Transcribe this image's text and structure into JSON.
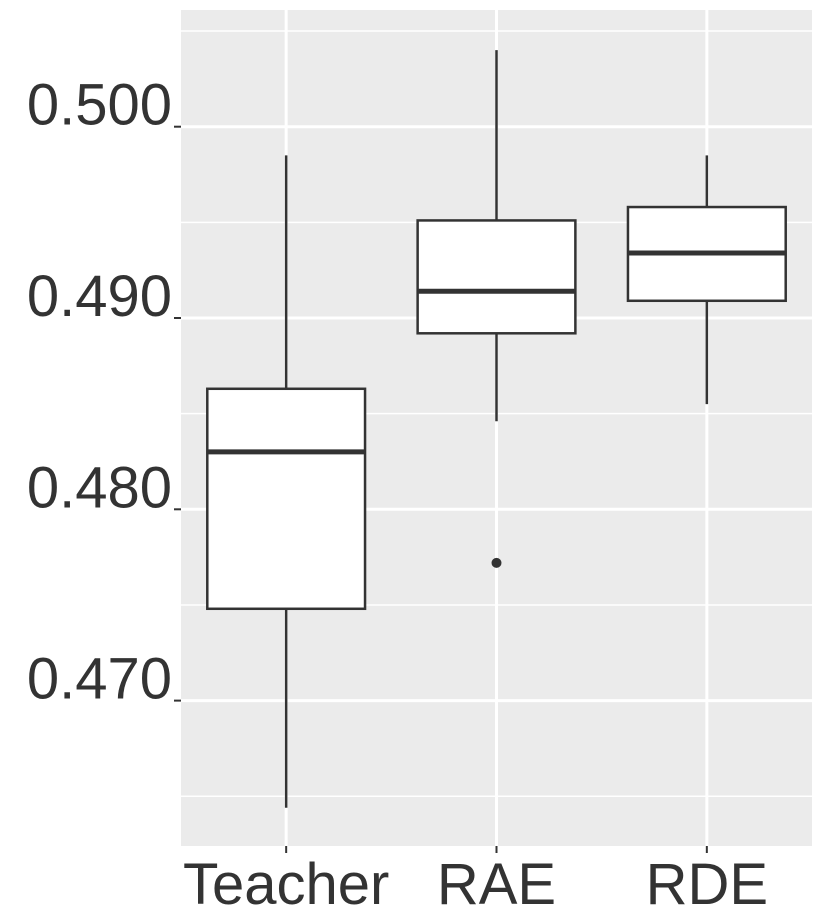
{
  "chart_data": {
    "type": "boxplot",
    "title": "",
    "xlabel": "",
    "ylabel": "",
    "categories": [
      "Teacher",
      "RAE",
      "RDE"
    ],
    "boxes": [
      {
        "category": "Teacher",
        "whisker_low": 0.4644,
        "q1": 0.4748,
        "median": 0.483,
        "q3": 0.4863,
        "whisker_high": 0.4985,
        "outliers": []
      },
      {
        "category": "RAE",
        "whisker_low": 0.4846,
        "q1": 0.4892,
        "median": 0.4914,
        "q3": 0.4951,
        "whisker_high": 0.504,
        "outliers": [
          0.4772
        ]
      },
      {
        "category": "RDE",
        "whisker_low": 0.4855,
        "q1": 0.4909,
        "median": 0.4934,
        "q3": 0.4958,
        "whisker_high": 0.4985,
        "outliers": []
      }
    ],
    "yticks": [
      0.47,
      0.48,
      0.49,
      0.5
    ],
    "ytick_labels": [
      "0.470",
      "0.480",
      "0.490",
      "0.500"
    ],
    "ylim": [
      0.4624,
      0.5061
    ],
    "grid": true,
    "colors": {
      "panel": "#EBEBEB",
      "grid": "#FFFFFF",
      "box_fill": "#FFFFFF",
      "box_line": "#333333",
      "text": "#333333"
    }
  }
}
